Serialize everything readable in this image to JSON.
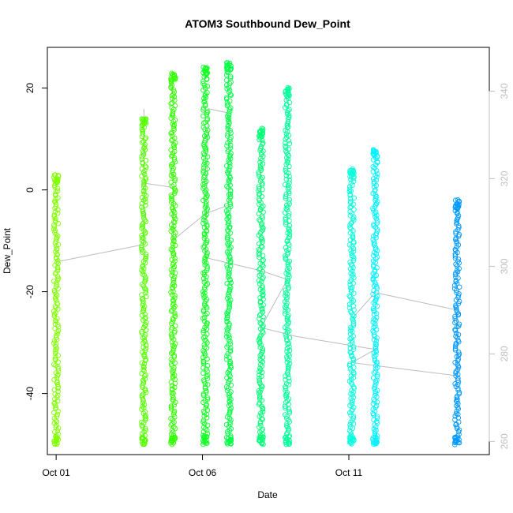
{
  "chart_data": {
    "type": "scatter",
    "title": "ATOM3 Southbound Dew_Point",
    "xlabel": "Date",
    "ylabel": "Dew_Point",
    "x_unit": "days",
    "xlim": [
      -0.3,
      14.8
    ],
    "ylim": [
      -52,
      28
    ],
    "y2lim": [
      257,
      350
    ],
    "x_ticks": [
      {
        "label": "Oct 01",
        "value": 0
      },
      {
        "label": "Oct 06",
        "value": 5
      },
      {
        "label": "Oct 11",
        "value": 10
      }
    ],
    "y_ticks": [
      -40,
      -20,
      0,
      20
    ],
    "y2_ticks": [
      260,
      280,
      300,
      320,
      340
    ],
    "grid": false,
    "series": [
      {
        "x": 0.0,
        "ymin": -50,
        "ymax": 3,
        "color": "#80ff00"
      },
      {
        "x": 3.0,
        "ymin": -50,
        "ymax": 14,
        "color": "#55ff00"
      },
      {
        "x": 4.0,
        "ymin": -50,
        "ymax": 23,
        "color": "#33ff00"
      },
      {
        "x": 5.1,
        "ymin": -50,
        "ymax": 24,
        "color": "#11ff22"
      },
      {
        "x": 5.9,
        "ymin": -50,
        "ymax": 25,
        "color": "#00ff44"
      },
      {
        "x": 7.0,
        "ymin": -50,
        "ymax": 12,
        "color": "#00ff77"
      },
      {
        "x": 7.9,
        "ymin": -50,
        "ymax": 20,
        "color": "#00ff99"
      },
      {
        "x": 10.1,
        "ymin": -50,
        "ymax": 4,
        "color": "#00ffdd"
      },
      {
        "x": 10.9,
        "ymin": -50,
        "ymax": 8,
        "color": "#00f2ff"
      },
      {
        "x": 13.7,
        "ymin": -50,
        "ymax": -2,
        "color": "#0099ff"
      }
    ],
    "secondary_line": {
      "color": "#bbbbbb",
      "points": [
        [
          0.0,
          301
        ],
        [
          3.0,
          305
        ],
        [
          3.0,
          336
        ],
        [
          3.0,
          319
        ],
        [
          4.0,
          318
        ],
        [
          4.0,
          306
        ],
        [
          5.1,
          312
        ],
        [
          5.9,
          314
        ],
        [
          5.9,
          335
        ],
        [
          5.2,
          336
        ],
        [
          5.1,
          302
        ],
        [
          7.0,
          299
        ],
        [
          7.9,
          297
        ],
        [
          7.0,
          286
        ],
        [
          8.2,
          284
        ],
        [
          10.9,
          281
        ],
        [
          10.1,
          278
        ],
        [
          13.7,
          275
        ],
        [
          13.7,
          290
        ],
        [
          10.9,
          294
        ],
        [
          10.1,
          288
        ]
      ]
    }
  }
}
